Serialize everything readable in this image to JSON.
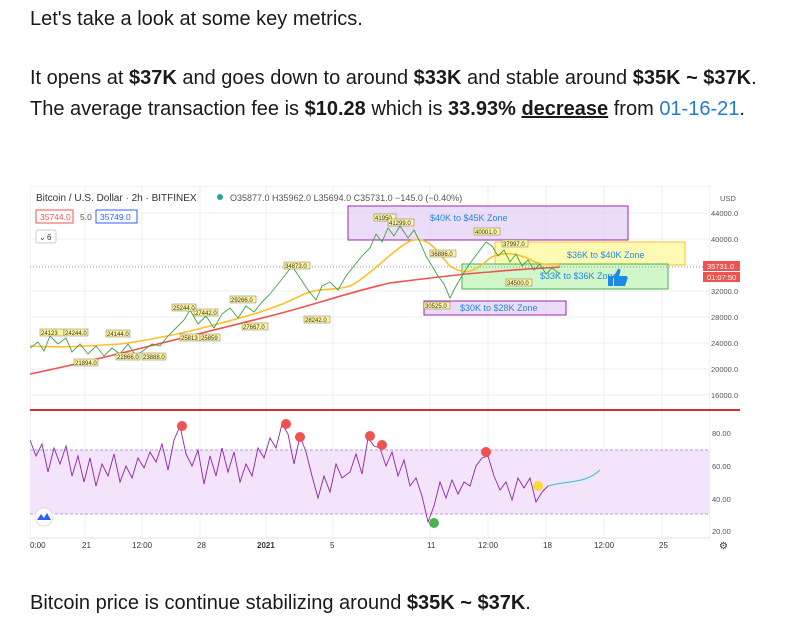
{
  "article": {
    "p1": "Let's take a look at some key metrics.",
    "p2_a": "It opens at ",
    "p2_b": "$37K",
    "p2_c": " and goes down to around ",
    "p2_d": "$33K",
    "p2_e": " and stable around ",
    "p2_f": "$35K ~ $37K",
    "p2_g": ". The average transaction fee is ",
    "p2_h": "$10.28",
    "p2_i": " which is ",
    "p2_j": "33.93%",
    "p2_k": " ",
    "p2_l": "decrease",
    "p2_m": " from ",
    "p2_link": "01-16-21",
    "p2_n": ".",
    "p3_a": "Bitcoin price is continue stabilizing around ",
    "p3_b": "$35K ~ $37K",
    "p3_c": "."
  },
  "chart": {
    "header": "Bitcoin / U.S. Dollar · 2h · BITFINEX",
    "ohlc": "O35877.0 H35962.0 L35694.0 C35731.0 −145.0 (−0.40%)",
    "bid": "35744.0",
    "spread": "5.0",
    "ask": "35749.0",
    "indicator_count": "6",
    "currency": "USD",
    "price_ticks": [
      "44000.0",
      "40000.0",
      "36000.0",
      "32000.0",
      "28000.0",
      "24000.0",
      "20000.0",
      "16000.0"
    ],
    "current_price": "35731.0",
    "countdown": "01:07:50",
    "osc_ticks": [
      "80.00",
      "60.00",
      "40.00",
      "20.00"
    ],
    "time_ticks": [
      "0:00",
      "21",
      "12:00",
      "28",
      "2021",
      "5",
      "11",
      "12:00",
      "18",
      "12:00",
      "25"
    ],
    "zones": {
      "z1": "$40K to $45K Zone",
      "z2": "$36K to $40K Zone",
      "z3": "$33K to $36K Zone",
      "z4": "$30K to $28K Zone"
    },
    "labels": [
      "24123",
      "24244.0",
      "24144.0",
      "21894.0",
      "22866.0",
      "23888.0",
      "25244.0",
      "27442.0",
      "25813",
      "25859",
      "29266.0",
      "27667.0",
      "34873.0",
      "28242.0",
      "41950",
      "41299.0",
      "40001.0",
      "36886.0",
      "37997.0",
      "34500.0",
      "30525.0"
    ]
  },
  "chart_data": {
    "type": "line",
    "x": [
      "0:00",
      "21",
      "12:00",
      "28",
      "2021",
      "5",
      "11",
      "12:00",
      "18",
      "12:00",
      "25"
    ],
    "series": [],
    "ylim": [
      14000,
      46000
    ],
    "annotations": [
      "$40K to $45K Zone",
      "$36K to $40K Zone",
      "$33K to $36K Zone",
      "$30K to $28K Zone"
    ]
  }
}
